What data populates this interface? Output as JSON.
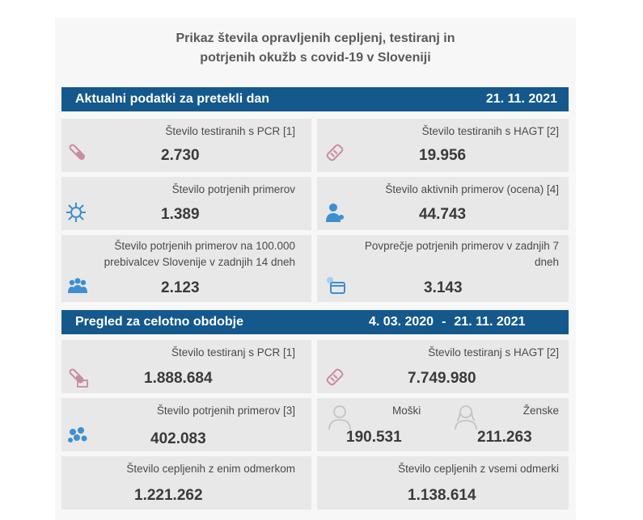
{
  "header": {
    "title_line1": "Prikaz števila opravljenih cepljenj, testiranj in",
    "title_line2": "potrjenih okužb s covid-19 v Sloveniji"
  },
  "daily": {
    "heading": "Aktualni podatki za pretekli dan",
    "date": "21. 11. 2021",
    "pcr_label": "Število testiranih s PCR [1]",
    "pcr_value": "2.730",
    "hagt_label": "Število testiranih s HAGT [2]",
    "hagt_value": "19.956",
    "confirmed_label": "Število potrjenih primerov",
    "confirmed_value": "1.389",
    "active_label": "Število aktivnih primerov (ocena) [4]",
    "active_value": "44.743",
    "per100k_label_line1": "Število potrjenih primerov na 100.000",
    "per100k_label_line2": "prebivalcev Slovenije v zadnjih 14 dneh",
    "per100k_value": "2.123",
    "avg7_label_line1": "Povprečje potrjenih primerov v zadnjih 7",
    "avg7_label_line2": "dneh",
    "avg7_value": "3.143"
  },
  "period": {
    "heading": "Pregled za celotno obdobje",
    "date_from": "4. 03. 2020",
    "dash": "-",
    "date_to": "21. 11. 2021",
    "pcr_label": "Število testiranj s PCR [1]",
    "pcr_value": "1.888.684",
    "hagt_label": "Število testiranj s HAGT [2]",
    "hagt_value": "7.749.980",
    "confirmed_label": "Število potrjenih primerov [3]",
    "confirmed_value": "402.083",
    "male_label": "Moški",
    "male_value": "190.531",
    "female_label": "Ženske",
    "female_value": "211.263",
    "one_dose_label": "Število cepljenih z enim odmerkom",
    "one_dose_value": "1.221.262",
    "full_label": "Število cepljenih z vsemi odmerki",
    "full_value": "1.138.614"
  },
  "icons": {
    "test_tube": "test-tube-icon",
    "rapid_test": "rapid-test-icon",
    "virus": "virus-icon",
    "person": "person-icon",
    "group": "group-icon",
    "calendar": "calendar-icon",
    "male": "male-icon",
    "female": "female-icon"
  },
  "colors": {
    "bar_blue": "#14588c",
    "card_gray": "#e8e8e8",
    "icon_pink": "#c98aa0",
    "icon_blue": "#3f8fd0"
  }
}
